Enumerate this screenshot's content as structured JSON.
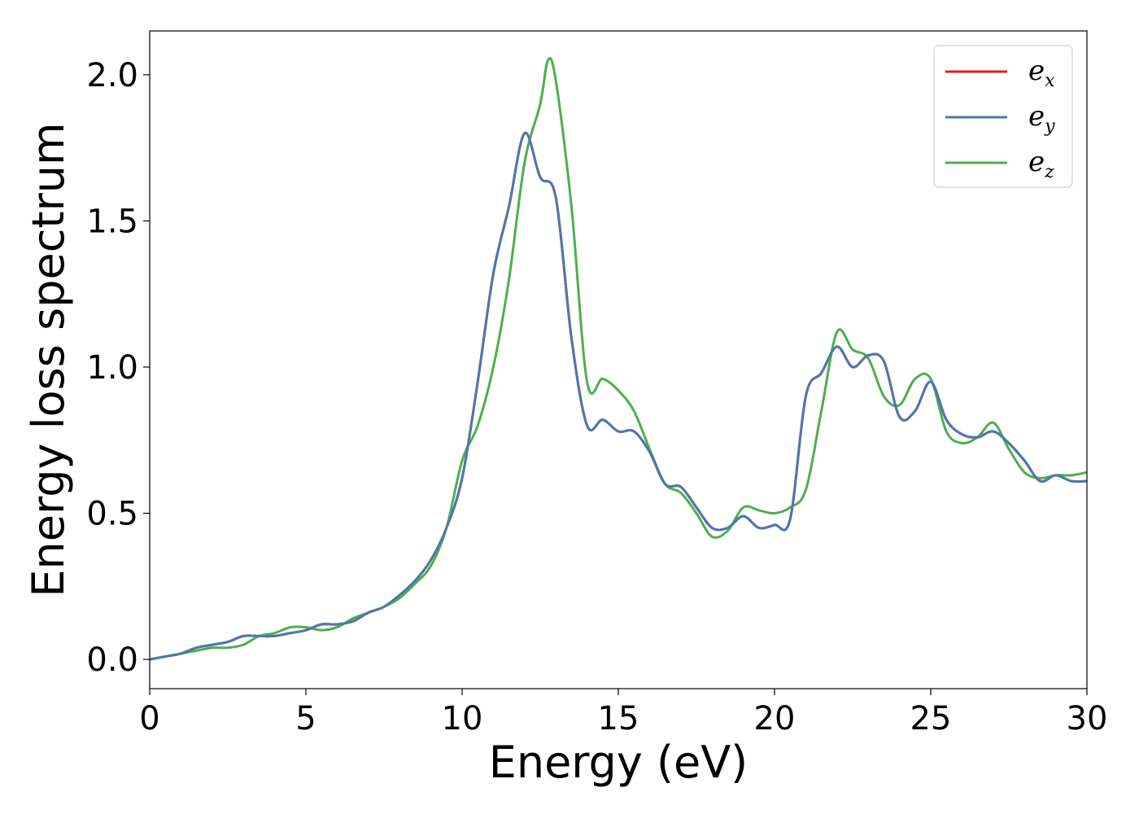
{
  "chart_data": {
    "type": "line",
    "title": "",
    "xlabel": "Energy (eV)",
    "ylabel": "Energy loss spectrum",
    "xlim": [
      0,
      30
    ],
    "ylim": [
      -0.1,
      2.15
    ],
    "xticks": [
      0,
      5,
      10,
      15,
      20,
      25,
      30
    ],
    "xtick_labels": [
      "0",
      "5",
      "10",
      "15",
      "20",
      "25",
      "30"
    ],
    "yticks": [
      0.0,
      0.5,
      1.0,
      1.5,
      2.0
    ],
    "ytick_labels": [
      "0.0",
      "0.5",
      "1.0",
      "1.5",
      "2.0"
    ],
    "grid": false,
    "legend_position": "top-right",
    "series": [
      {
        "name": "e_x",
        "label_base": "e",
        "label_sub": "x",
        "color": "#e41a1c",
        "x": [
          0,
          0.5,
          1,
          1.5,
          2,
          2.5,
          3,
          3.5,
          4,
          4.5,
          5,
          5.5,
          6,
          6.5,
          7,
          7.5,
          8,
          8.5,
          9,
          9.5,
          10,
          10.5,
          11,
          11.5,
          12,
          12.5,
          13,
          13.5,
          14,
          14.5,
          15,
          15.5,
          16,
          16.5,
          17,
          17.5,
          18,
          18.5,
          19,
          19.5,
          20,
          20.5,
          21,
          21.5,
          22,
          22.5,
          23,
          23.5,
          24,
          24.5,
          25,
          25.5,
          26,
          26.5,
          27,
          27.5,
          28,
          28.5,
          29,
          29.5,
          30
        ],
        "y": [
          0.0,
          0.01,
          0.02,
          0.04,
          0.05,
          0.06,
          0.08,
          0.08,
          0.08,
          0.09,
          0.1,
          0.12,
          0.12,
          0.13,
          0.16,
          0.18,
          0.22,
          0.27,
          0.34,
          0.45,
          0.62,
          0.95,
          1.32,
          1.55,
          1.8,
          1.65,
          1.58,
          1.1,
          0.8,
          0.82,
          0.78,
          0.78,
          0.71,
          0.6,
          0.59,
          0.52,
          0.45,
          0.45,
          0.49,
          0.45,
          0.46,
          0.48,
          0.9,
          0.98,
          1.07,
          1.0,
          1.04,
          1.02,
          0.83,
          0.85,
          0.95,
          0.82,
          0.77,
          0.76,
          0.78,
          0.74,
          0.68,
          0.61,
          0.63,
          0.61,
          0.61
        ]
      },
      {
        "name": "e_y",
        "label_base": "e",
        "label_sub": "y",
        "color": "#4a78b0",
        "x": [
          0,
          0.5,
          1,
          1.5,
          2,
          2.5,
          3,
          3.5,
          4,
          4.5,
          5,
          5.5,
          6,
          6.5,
          7,
          7.5,
          8,
          8.5,
          9,
          9.5,
          10,
          10.5,
          11,
          11.5,
          12,
          12.5,
          13,
          13.5,
          14,
          14.5,
          15,
          15.5,
          16,
          16.5,
          17,
          17.5,
          18,
          18.5,
          19,
          19.5,
          20,
          20.5,
          21,
          21.5,
          22,
          22.5,
          23,
          23.5,
          24,
          24.5,
          25,
          25.5,
          26,
          26.5,
          27,
          27.5,
          28,
          28.5,
          29,
          29.5,
          30
        ],
        "y": [
          0.0,
          0.01,
          0.02,
          0.04,
          0.05,
          0.06,
          0.08,
          0.08,
          0.08,
          0.09,
          0.1,
          0.12,
          0.12,
          0.13,
          0.16,
          0.18,
          0.22,
          0.27,
          0.34,
          0.45,
          0.62,
          0.95,
          1.32,
          1.55,
          1.8,
          1.65,
          1.58,
          1.1,
          0.8,
          0.82,
          0.78,
          0.78,
          0.71,
          0.6,
          0.59,
          0.52,
          0.45,
          0.45,
          0.49,
          0.45,
          0.46,
          0.48,
          0.9,
          0.98,
          1.07,
          1.0,
          1.04,
          1.02,
          0.83,
          0.85,
          0.95,
          0.82,
          0.77,
          0.76,
          0.78,
          0.74,
          0.68,
          0.61,
          0.63,
          0.61,
          0.61
        ]
      },
      {
        "name": "e_z",
        "label_base": "e",
        "label_sub": "z",
        "color": "#4daf4a",
        "x": [
          0,
          0.5,
          1,
          1.5,
          2,
          2.5,
          3,
          3.5,
          4,
          4.5,
          5,
          5.5,
          6,
          6.5,
          7,
          7.5,
          8,
          8.5,
          9,
          9.5,
          10,
          10.5,
          11,
          11.5,
          12,
          12.5,
          12.75,
          13,
          13.5,
          14,
          14.5,
          15,
          15.5,
          16,
          16.5,
          17,
          17.5,
          18,
          18.5,
          19,
          19.5,
          20,
          20.5,
          21,
          21.5,
          22,
          22.5,
          23,
          23.5,
          24,
          24.5,
          25,
          25.5,
          26,
          26.5,
          27,
          27.5,
          28,
          28.5,
          29,
          29.5,
          30
        ],
        "y": [
          0.0,
          0.01,
          0.02,
          0.03,
          0.04,
          0.04,
          0.05,
          0.08,
          0.09,
          0.11,
          0.11,
          0.1,
          0.11,
          0.14,
          0.16,
          0.18,
          0.21,
          0.26,
          0.32,
          0.45,
          0.68,
          0.8,
          1.0,
          1.3,
          1.7,
          1.9,
          2.05,
          1.98,
          1.55,
          0.95,
          0.96,
          0.92,
          0.85,
          0.72,
          0.6,
          0.57,
          0.5,
          0.42,
          0.44,
          0.52,
          0.51,
          0.5,
          0.52,
          0.58,
          0.85,
          1.12,
          1.06,
          1.03,
          0.9,
          0.87,
          0.96,
          0.96,
          0.78,
          0.74,
          0.76,
          0.81,
          0.72,
          0.64,
          0.62,
          0.63,
          0.63,
          0.64
        ]
      }
    ]
  }
}
